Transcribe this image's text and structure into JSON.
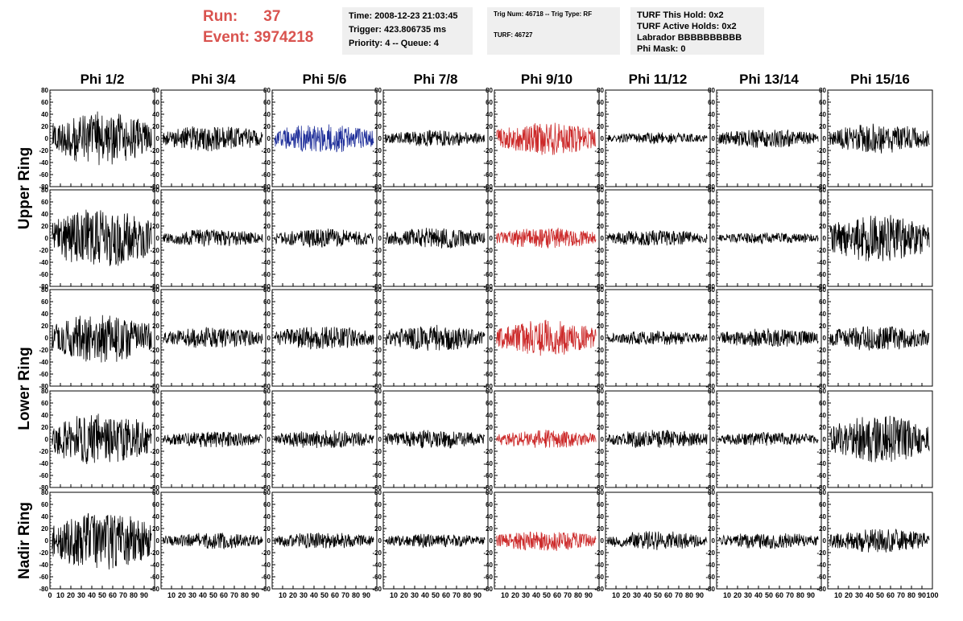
{
  "header": {
    "run_label": "Run:",
    "run_value": "37",
    "event_label": "Event:",
    "event_value": "3974218",
    "time": "Time: 2008-12-23 21:03:45",
    "trigger": "Trigger: 423.806735 ms",
    "priority": "Priority: 4 -- Queue: 4",
    "trig_num": "Trig Num: 46718 -- Trig Type: RF",
    "turf": "TURF: 46727",
    "turf_this_hold": "TURF This Hold: 0x2",
    "turf_active_holds": "TURF Active Holds: 0x2",
    "labrador": "Labrador BBBBBBBBBB",
    "phi_mask": "Phi Mask: 0"
  },
  "chart_data": {
    "type": "line",
    "columns": [
      "Phi 1/2",
      "Phi 3/4",
      "Phi 5/6",
      "Phi 7/8",
      "Phi 9/10",
      "Phi 11/12",
      "Phi 13/14",
      "Phi 15/16"
    ],
    "row_groups": [
      "Upper Ring",
      "Lower Ring",
      "Nadir Ring"
    ],
    "x_range": [
      0,
      100
    ],
    "x_ticks": [
      0,
      10,
      20,
      30,
      40,
      50,
      60,
      70,
      80,
      90,
      100
    ],
    "x_tick_labels": [
      "0",
      "10",
      "20",
      "30",
      "40",
      "50",
      "60",
      "70",
      "80",
      "90",
      "100"
    ],
    "y_range": [
      -80,
      80
    ],
    "y_ticks": [
      -80,
      -60,
      -40,
      -20,
      0,
      20,
      40,
      60,
      80
    ],
    "y_tick_labels": [
      "-80",
      "-60",
      "-40",
      "-20",
      "0",
      "20",
      "40",
      "60",
      "80"
    ],
    "colors": {
      "default": "#000000",
      "blue": "#1f2f9a",
      "red": "#cc2a2a"
    },
    "panels": [
      {
        "row": 0,
        "col": 0,
        "color": "default",
        "amplitude": 45
      },
      {
        "row": 0,
        "col": 1,
        "color": "default",
        "amplitude": 22
      },
      {
        "row": 0,
        "col": 2,
        "color": "blue",
        "amplitude": 25
      },
      {
        "row": 0,
        "col": 3,
        "color": "default",
        "amplitude": 14
      },
      {
        "row": 0,
        "col": 4,
        "color": "red",
        "amplitude": 28
      },
      {
        "row": 0,
        "col": 5,
        "color": "default",
        "amplitude": 10
      },
      {
        "row": 0,
        "col": 6,
        "color": "default",
        "amplitude": 16
      },
      {
        "row": 0,
        "col": 7,
        "color": "default",
        "amplitude": 25
      },
      {
        "row": 1,
        "col": 0,
        "color": "default",
        "amplitude": 50
      },
      {
        "row": 1,
        "col": 1,
        "color": "default",
        "amplitude": 15
      },
      {
        "row": 1,
        "col": 2,
        "color": "default",
        "amplitude": 16
      },
      {
        "row": 1,
        "col": 3,
        "color": "default",
        "amplitude": 18
      },
      {
        "row": 1,
        "col": 4,
        "color": "red",
        "amplitude": 18
      },
      {
        "row": 1,
        "col": 5,
        "color": "default",
        "amplitude": 14
      },
      {
        "row": 1,
        "col": 6,
        "color": "default",
        "amplitude": 10
      },
      {
        "row": 1,
        "col": 7,
        "color": "default",
        "amplitude": 40
      },
      {
        "row": 2,
        "col": 0,
        "color": "default",
        "amplitude": 42
      },
      {
        "row": 2,
        "col": 1,
        "color": "default",
        "amplitude": 18
      },
      {
        "row": 2,
        "col": 2,
        "color": "default",
        "amplitude": 20
      },
      {
        "row": 2,
        "col": 3,
        "color": "default",
        "amplitude": 22
      },
      {
        "row": 2,
        "col": 4,
        "color": "red",
        "amplitude": 30
      },
      {
        "row": 2,
        "col": 5,
        "color": "default",
        "amplitude": 12
      },
      {
        "row": 2,
        "col": 6,
        "color": "default",
        "amplitude": 16
      },
      {
        "row": 2,
        "col": 7,
        "color": "default",
        "amplitude": 22
      },
      {
        "row": 3,
        "col": 0,
        "color": "default",
        "amplitude": 45
      },
      {
        "row": 3,
        "col": 1,
        "color": "default",
        "amplitude": 14
      },
      {
        "row": 3,
        "col": 2,
        "color": "default",
        "amplitude": 16
      },
      {
        "row": 3,
        "col": 3,
        "color": "default",
        "amplitude": 16
      },
      {
        "row": 3,
        "col": 4,
        "color": "red",
        "amplitude": 16
      },
      {
        "row": 3,
        "col": 5,
        "color": "default",
        "amplitude": 16
      },
      {
        "row": 3,
        "col": 6,
        "color": "default",
        "amplitude": 12
      },
      {
        "row": 3,
        "col": 7,
        "color": "default",
        "amplitude": 40
      },
      {
        "row": 4,
        "col": 0,
        "color": "default",
        "amplitude": 50
      },
      {
        "row": 4,
        "col": 1,
        "color": "default",
        "amplitude": 14
      },
      {
        "row": 4,
        "col": 2,
        "color": "default",
        "amplitude": 14
      },
      {
        "row": 4,
        "col": 3,
        "color": "default",
        "amplitude": 12
      },
      {
        "row": 4,
        "col": 4,
        "color": "red",
        "amplitude": 18
      },
      {
        "row": 4,
        "col": 5,
        "color": "default",
        "amplitude": 16
      },
      {
        "row": 4,
        "col": 6,
        "color": "default",
        "amplitude": 14
      },
      {
        "row": 4,
        "col": 7,
        "color": "default",
        "amplitude": 20
      }
    ]
  }
}
